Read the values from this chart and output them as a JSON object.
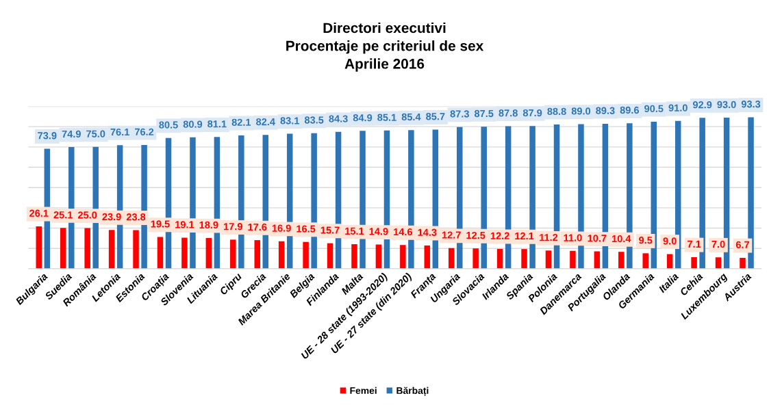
{
  "chart_data": {
    "type": "bar",
    "title": "Directori executivi\nProcentaje pe criteriul de sex\nAprilie 2016",
    "categories": [
      "Bulgaria",
      "Suedia",
      "România",
      "Letonia",
      "Estonia",
      "Croația",
      "Slovenia",
      "Lituania",
      "Cipru",
      "Grecia",
      "Marea Britanie",
      "Belgia",
      "Finlanda",
      "Malta",
      "UE - 28 state (1993-2020)",
      "UE - 27 state (din 2020)",
      "Franța",
      "Ungaria",
      "Slovacia",
      "Irlanda",
      "Spania",
      "Polonia",
      "Danemarca",
      "Portugalia",
      "Olanda",
      "Germania",
      "Italia",
      "Cehia",
      "Luxembourg",
      "Austria"
    ],
    "series": [
      {
        "name": "Femei",
        "color": "#ff0000",
        "values": [
          26.1,
          25.1,
          25.0,
          23.9,
          23.8,
          19.5,
          19.1,
          18.9,
          17.9,
          17.6,
          16.9,
          16.5,
          15.7,
          15.1,
          14.9,
          14.6,
          14.3,
          12.7,
          12.5,
          12.2,
          12.1,
          11.2,
          11.0,
          10.7,
          10.4,
          9.5,
          9.0,
          7.1,
          7.0,
          6.7
        ],
        "value_labels": [
          "26.1",
          "25.1",
          "25.0",
          "23.9",
          "23.8",
          "19.5",
          "19.1",
          "18.9",
          "17.9",
          "17.6",
          "16.9",
          "16.5",
          "15.7",
          "15.1",
          "14.9",
          "14.6",
          "14.3",
          "12.7",
          "12.5",
          "12.2",
          "12.1",
          "11.2",
          "11.0",
          "10.7",
          "10.4",
          "9.5",
          "9.0",
          "7.1",
          "7.0",
          "6.7"
        ]
      },
      {
        "name": "Bărbați",
        "color": "#2e75b6",
        "values": [
          73.9,
          74.9,
          75.0,
          76.1,
          76.2,
          80.5,
          80.9,
          81.1,
          82.1,
          82.4,
          83.1,
          83.5,
          84.3,
          84.9,
          85.1,
          85.4,
          85.7,
          87.3,
          87.5,
          87.8,
          87.9,
          88.8,
          89.0,
          89.3,
          89.6,
          90.5,
          91.0,
          92.9,
          93.0,
          93.3
        ],
        "value_labels": [
          "73.9",
          "74.9",
          "75.0",
          "76.1",
          "76.2",
          "80.5",
          "80.9",
          "81.1",
          "82.1",
          "82.4",
          "83.1",
          "83.5",
          "84.3",
          "84.9",
          "85.1",
          "85.4",
          "85.7",
          "87.3",
          "87.5",
          "87.8",
          "87.9",
          "88.8",
          "89.0",
          "89.3",
          "89.6",
          "90.5",
          "91.0",
          "92.9",
          "93.0",
          "93.3"
        ]
      }
    ],
    "ylim": [
      0,
      100
    ],
    "yticks": [
      {
        "value": 0,
        "label": null
      },
      {
        "value": 12.5,
        "label": null
      },
      {
        "value": 25,
        "label": null
      },
      {
        "value": 37.5,
        "label": null
      },
      {
        "value": 50,
        "label": null
      },
      {
        "value": 62.5,
        "label": null
      },
      {
        "value": 75,
        "label": null
      },
      {
        "value": 87.5,
        "label": null
      },
      {
        "value": 100,
        "label": null
      }
    ],
    "tick_labels": "x",
    "grid": "y",
    "legend": "bottom"
  }
}
